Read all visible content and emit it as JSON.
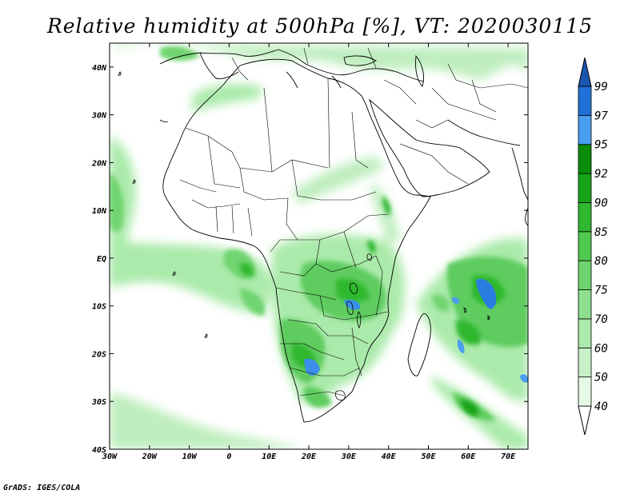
{
  "title": "Relative humidity at 500hPa [%], VT: 2020030115",
  "credit": "GrADS: IGES/COLA",
  "map": {
    "lon_range": [
      -30,
      75
    ],
    "lat_range": [
      -40,
      45
    ],
    "x_tick_labels": [
      "30W",
      "20W",
      "10W",
      "0",
      "10E",
      "20E",
      "30E",
      "40E",
      "50E",
      "60E",
      "70E"
    ],
    "x_tick_values": [
      -30,
      -20,
      -10,
      0,
      10,
      20,
      30,
      40,
      50,
      60,
      70
    ],
    "y_tick_labels": [
      "40S",
      "30S",
      "20S",
      "10S",
      "EQ",
      "10N",
      "20N",
      "30N",
      "40N"
    ],
    "y_tick_values": [
      -40,
      -30,
      -20,
      -10,
      0,
      10,
      20,
      30,
      40
    ]
  },
  "colorbar": {
    "levels": [
      "40",
      "50",
      "60",
      "70",
      "75",
      "80",
      "85",
      "90",
      "92",
      "95",
      "97",
      "99"
    ],
    "colors": [
      "#ffffff",
      "#e6f9e6",
      "#c8f0c8",
      "#aaeaaa",
      "#8ee08e",
      "#6fd46f",
      "#4fc84f",
      "#2fb82f",
      "#17a317",
      "#0a8c0a",
      "#4a9ef0",
      "#2070d8",
      "#1a55b0"
    ]
  }
}
